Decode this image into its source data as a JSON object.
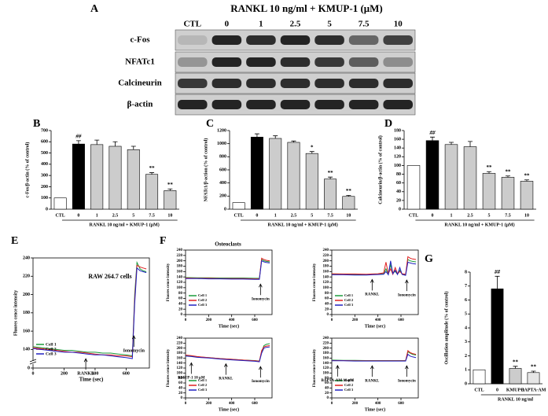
{
  "blot": {
    "panel": "A",
    "header": "RANKL 10 ng/ml + KMUP-1 (μM)",
    "lanes": [
      "CTL",
      "0",
      "1",
      "2.5",
      "5",
      "7.5",
      "10"
    ],
    "rows": [
      "c-Fos",
      "NFATc1",
      "Calcineurin",
      "β-actin"
    ]
  },
  "chart_data": [
    {
      "type": "bar",
      "panel": "B",
      "ylabel": "c-Fos/β-actin (% of control)",
      "xlabel": "RANKL 10 ng/ml + KMUP-1 (μM)",
      "categories": [
        "CTL",
        "0",
        "1",
        "2.5",
        "5",
        "7.5",
        "10"
      ],
      "values": [
        100,
        580,
        575,
        560,
        530,
        310,
        165
      ],
      "errors": [
        0,
        30,
        40,
        40,
        30,
        15,
        15
      ],
      "colors": [
        "#ffffff",
        "#000000",
        "#cccccc",
        "#cccccc",
        "#cccccc",
        "#cccccc",
        "#cccccc"
      ],
      "ylim": [
        0,
        700
      ],
      "yticks": [
        0,
        100,
        200,
        300,
        400,
        500,
        600,
        700
      ],
      "annotations": [
        {
          "index": 1,
          "text": "##"
        },
        {
          "index": 5,
          "text": "**"
        },
        {
          "index": 6,
          "text": "**"
        }
      ]
    },
    {
      "type": "bar",
      "panel": "C",
      "ylabel": "NFATc1/β-action (% of control)",
      "xlabel": "RANKL 10 ng/ml + KMUP-1 (μM)",
      "categories": [
        "CTL",
        "0",
        "1",
        "2.5",
        "5",
        "7.5",
        "10"
      ],
      "values": [
        100,
        1100,
        1080,
        1020,
        850,
        460,
        195
      ],
      "errors": [
        0,
        50,
        40,
        20,
        30,
        30,
        15
      ],
      "colors": [
        "#ffffff",
        "#000000",
        "#cccccc",
        "#cccccc",
        "#cccccc",
        "#cccccc",
        "#cccccc"
      ],
      "ylim": [
        0,
        1200
      ],
      "yticks": [
        0,
        200,
        400,
        600,
        800,
        1000,
        1200
      ],
      "annotations": [
        {
          "index": 4,
          "text": "*"
        },
        {
          "index": 5,
          "text": "**"
        },
        {
          "index": 6,
          "text": "**"
        }
      ]
    },
    {
      "type": "bar",
      "panel": "D",
      "ylabel": "Calcineurin/β-actin (% of control)",
      "xlabel": "RANKL 10 ng/ml + KMUP-1 (μM)",
      "categories": [
        "CTL",
        "0",
        "1",
        "2.5",
        "5",
        "7.5",
        "10"
      ],
      "values": [
        100,
        157,
        148,
        143,
        82,
        73,
        64
      ],
      "errors": [
        0,
        8,
        5,
        12,
        4,
        3,
        3
      ],
      "colors": [
        "#ffffff",
        "#000000",
        "#cccccc",
        "#cccccc",
        "#cccccc",
        "#cccccc",
        "#cccccc"
      ],
      "ylim": [
        0,
        180
      ],
      "yticks": [
        0,
        20,
        40,
        60,
        80,
        100,
        120,
        140,
        160,
        180
      ],
      "annotations": [
        {
          "index": 1,
          "text": "##"
        },
        {
          "index": 4,
          "text": "**"
        },
        {
          "index": 5,
          "text": "**"
        },
        {
          "index": 6,
          "text": "**"
        }
      ]
    },
    {
      "type": "line",
      "panel": "E",
      "title": "RAW 264.7 cells",
      "ylabel": "Fluores cence intensity",
      "xlabel": "Time (sec)",
      "x": [
        0,
        50,
        100,
        150,
        200,
        250,
        300,
        350,
        400,
        450,
        500,
        550,
        600,
        640,
        655,
        670,
        690,
        710,
        730
      ],
      "series": [
        {
          "name": "Cell 1",
          "color": "#1a9a3a",
          "values": [
            143,
            142,
            141,
            140,
            139,
            139,
            138,
            137,
            137,
            136,
            136,
            135,
            134,
            133,
            200,
            235,
            228,
            226,
            225
          ]
        },
        {
          "name": "Cell 2",
          "color": "#e02020",
          "values": [
            142,
            141,
            140,
            139,
            138,
            137,
            137,
            136,
            135,
            134,
            134,
            133,
            133,
            132,
            195,
            232,
            230,
            229,
            228
          ]
        },
        {
          "name": "Cell 3",
          "color": "#2020c0",
          "values": [
            141,
            140,
            139,
            138,
            137,
            137,
            136,
            135,
            134,
            134,
            133,
            132,
            131,
            130,
            190,
            229,
            226,
            225,
            224
          ]
        }
      ],
      "xlim": [
        0,
        750
      ],
      "xticks": [
        0,
        200,
        400,
        600
      ],
      "ylim": [
        0,
        240
      ],
      "yticks": [
        0,
        140,
        160,
        180,
        200,
        220,
        240
      ],
      "axis_break": [
        0,
        130
      ],
      "annotations": [
        {
          "x": 340,
          "text": "RANKL"
        },
        {
          "x": 650,
          "text": "Ionomycin"
        }
      ]
    },
    {
      "type": "line",
      "panel": "F",
      "title": "Osteoclasts",
      "ylabel": "Fluores cence intensity",
      "xlabel": "Time (sec)",
      "x": [
        0,
        100,
        200,
        300,
        400,
        500,
        600,
        640,
        660,
        680,
        700,
        730
      ],
      "series": [
        {
          "name": "Cell 1",
          "color": "#1a9a3a",
          "values": [
            138,
            137,
            137,
            136,
            136,
            136,
            135,
            135,
            205,
            200,
            198,
            196
          ]
        },
        {
          "name": "Cell 2",
          "color": "#e02020",
          "values": [
            136,
            135,
            135,
            134,
            134,
            134,
            133,
            133,
            210,
            205,
            202,
            200
          ]
        },
        {
          "name": "Cell 3",
          "color": "#2020c0",
          "values": [
            134,
            134,
            133,
            133,
            132,
            132,
            131,
            131,
            200,
            196,
            194,
            192
          ]
        }
      ],
      "xlim": [
        0,
        750
      ],
      "xticks": [
        0,
        200,
        400,
        600
      ],
      "ylim": [
        0,
        240
      ],
      "yticks": [
        0,
        20,
        40,
        60,
        80,
        100,
        120,
        140,
        160,
        180,
        200,
        220,
        240
      ],
      "annotations": [
        {
          "x": 650,
          "text": "Ionomycin"
        }
      ]
    },
    {
      "type": "line",
      "ylabel": "Fluores cence intensity",
      "xlabel": "Time (sec)",
      "x": [
        0,
        100,
        200,
        300,
        350,
        400,
        450,
        470,
        490,
        510,
        530,
        550,
        570,
        590,
        610,
        640,
        660,
        680,
        700,
        730
      ],
      "series": [
        {
          "name": "Cell 1",
          "color": "#1a9a3a",
          "values": [
            150,
            150,
            149,
            149,
            150,
            150,
            152,
            170,
            150,
            185,
            155,
            160,
            150,
            165,
            150,
            148,
            205,
            200,
            198,
            196
          ]
        },
        {
          "name": "Cell 2",
          "color": "#e02020",
          "values": [
            152,
            151,
            151,
            150,
            151,
            152,
            155,
            195,
            152,
            170,
            150,
            175,
            152,
            160,
            152,
            150,
            215,
            210,
            207,
            205
          ]
        },
        {
          "name": "Cell 3",
          "color": "#2020c0",
          "values": [
            148,
            148,
            147,
            147,
            148,
            149,
            150,
            160,
            148,
            200,
            152,
            165,
            149,
            175,
            149,
            146,
            195,
            192,
            190,
            188
          ]
        }
      ],
      "xlim": [
        0,
        750
      ],
      "xticks": [
        0,
        200,
        400,
        600
      ],
      "ylim": [
        0,
        240
      ],
      "yticks": [
        0,
        20,
        40,
        60,
        80,
        100,
        120,
        140,
        160,
        180,
        200,
        220,
        240
      ],
      "annotations": [
        {
          "x": 350,
          "text": "RANKL"
        },
        {
          "x": 650,
          "text": "Ionomycin"
        }
      ]
    },
    {
      "type": "line",
      "ylabel": "Fluores cence intensity",
      "xlabel": "Time (sec)",
      "x": [
        0,
        50,
        100,
        200,
        300,
        400,
        500,
        600,
        640,
        660,
        680,
        700,
        730
      ],
      "series": [
        {
          "name": "Cell 1",
          "color": "#1a9a3a",
          "values": [
            170,
            168,
            165,
            162,
            158,
            155,
            152,
            150,
            148,
            185,
            210,
            215,
            218
          ]
        },
        {
          "name": "Cell 2",
          "color": "#e02020",
          "values": [
            172,
            170,
            166,
            162,
            158,
            155,
            152,
            149,
            147,
            190,
            205,
            208,
            210
          ]
        },
        {
          "name": "Cell 3",
          "color": "#2020c0",
          "values": [
            168,
            166,
            163,
            160,
            156,
            153,
            150,
            147,
            145,
            180,
            200,
            203,
            205
          ]
        }
      ],
      "xlim": [
        0,
        750
      ],
      "xticks": [
        0,
        200,
        400,
        600
      ],
      "ylim": [
        0,
        240
      ],
      "yticks": [
        0,
        20,
        40,
        60,
        80,
        100,
        120,
        140,
        160,
        180,
        200,
        220,
        240
      ],
      "annotations": [
        {
          "x": 50,
          "text": "KMUP-1 10 μM"
        },
        {
          "x": 350,
          "text": "RANKL"
        },
        {
          "x": 650,
          "text": "Ionomycin"
        }
      ]
    },
    {
      "type": "line",
      "ylabel": "Fluores cence intensity",
      "xlabel": "Time (sec)",
      "x": [
        0,
        100,
        200,
        300,
        400,
        500,
        600,
        640,
        660,
        680,
        700,
        730
      ],
      "series": [
        {
          "name": "Cell 1",
          "color": "#1a9a3a",
          "values": [
            152,
            151,
            151,
            150,
            150,
            150,
            150,
            150,
            185,
            180,
            175,
            172
          ]
        },
        {
          "name": "Cell 2",
          "color": "#e02020",
          "values": [
            150,
            150,
            149,
            149,
            149,
            149,
            149,
            149,
            190,
            182,
            178,
            175
          ]
        },
        {
          "name": "Cell 3",
          "color": "#2020c0",
          "values": [
            149,
            149,
            148,
            148,
            148,
            148,
            148,
            148,
            175,
            168,
            165,
            162
          ]
        }
      ],
      "xlim": [
        0,
        750
      ],
      "xticks": [
        0,
        200,
        400,
        600
      ],
      "ylim": [
        0,
        240
      ],
      "yticks": [
        0,
        20,
        40,
        60,
        80,
        100,
        120,
        140,
        160,
        180,
        200,
        220,
        240
      ],
      "annotations": [
        {
          "x": 50,
          "text": "BAPTA-AM 10 μM"
        },
        {
          "x": 350,
          "text": "RANKL"
        },
        {
          "x": 650,
          "text": "Ionomycin"
        }
      ]
    },
    {
      "type": "bar",
      "panel": "G",
      "ylabel": "Oscillation amplitude (% of control)",
      "xlabel": "RANKL 10 ng/ml",
      "categories": [
        "CTL",
        "0",
        "KMUP-1",
        "BAPTA-AM"
      ],
      "values": [
        1,
        6.8,
        1.1,
        0.8
      ],
      "errors": [
        0,
        0.9,
        0.15,
        0.1
      ],
      "colors": [
        "#ffffff",
        "#000000",
        "#cccccc",
        "#e6e6e6"
      ],
      "ylim": [
        0,
        8
      ],
      "yticks": [
        0,
        1,
        2,
        3,
        4,
        5,
        6,
        7,
        8
      ],
      "annotations": [
        {
          "index": 1,
          "text": "##"
        },
        {
          "index": 2,
          "text": "**"
        },
        {
          "index": 3,
          "text": "**"
        }
      ]
    }
  ]
}
